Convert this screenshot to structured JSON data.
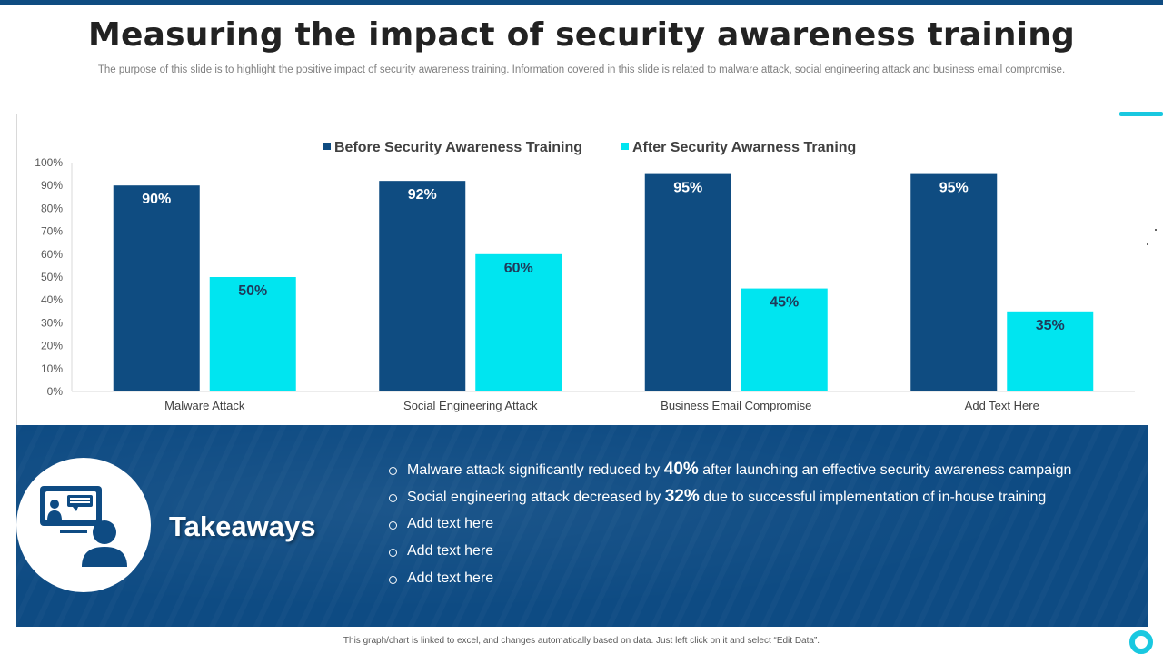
{
  "header": {
    "title": "Measuring the impact of security awareness training",
    "subtitle": "The purpose of this slide is to highlight the positive impact of security awareness training. Information covered in this slide is related to malware attack, social engineering attack and business email compromise."
  },
  "colors": {
    "before": "#0f4c81",
    "after": "#00e5f0",
    "panel": "#0e4b83",
    "accent": "#19c8e0"
  },
  "chart_data": {
    "type": "bar",
    "title": "",
    "xlabel": "",
    "ylabel": "",
    "ylim": [
      0,
      100
    ],
    "yticks": [
      "0%",
      "10%",
      "20%",
      "30%",
      "40%",
      "50%",
      "60%",
      "70%",
      "80%",
      "90%",
      "100%"
    ],
    "categories": [
      "Malware Attack",
      "Social Engineering Attack",
      "Business Email Compromise",
      "Add Text Here"
    ],
    "series": [
      {
        "name": "Before Security Awareness Training",
        "values": [
          90,
          92,
          95,
          95
        ],
        "labels": [
          "90%",
          "92%",
          "95%",
          "95%"
        ]
      },
      {
        "name": "After Security Awarness Traning",
        "values": [
          50,
          60,
          45,
          35
        ],
        "labels": [
          "50%",
          "60%",
          "45%",
          "35%"
        ]
      }
    ],
    "legend": "top-center",
    "grid": false
  },
  "takeaways": {
    "heading": "Takeaways",
    "icon": "presentation-user-icon",
    "items": [
      {
        "pre": "Malware attack significantly reduced by ",
        "em": "40%",
        "post": " after launching an effective security awareness campaign"
      },
      {
        "pre": " Social engineering attack decreased by ",
        "em": "32%",
        "post": " due to successful implementation of in-house training"
      },
      {
        "pre": "Add text here",
        "em": "",
        "post": ""
      },
      {
        "pre": "Add text here",
        "em": "",
        "post": ""
      },
      {
        "pre": "Add text here",
        "em": "",
        "post": ""
      }
    ]
  },
  "footer": {
    "note": "This graph/chart is linked to excel, and changes automatically based on data. Just left click on it and select “Edit Data”."
  }
}
